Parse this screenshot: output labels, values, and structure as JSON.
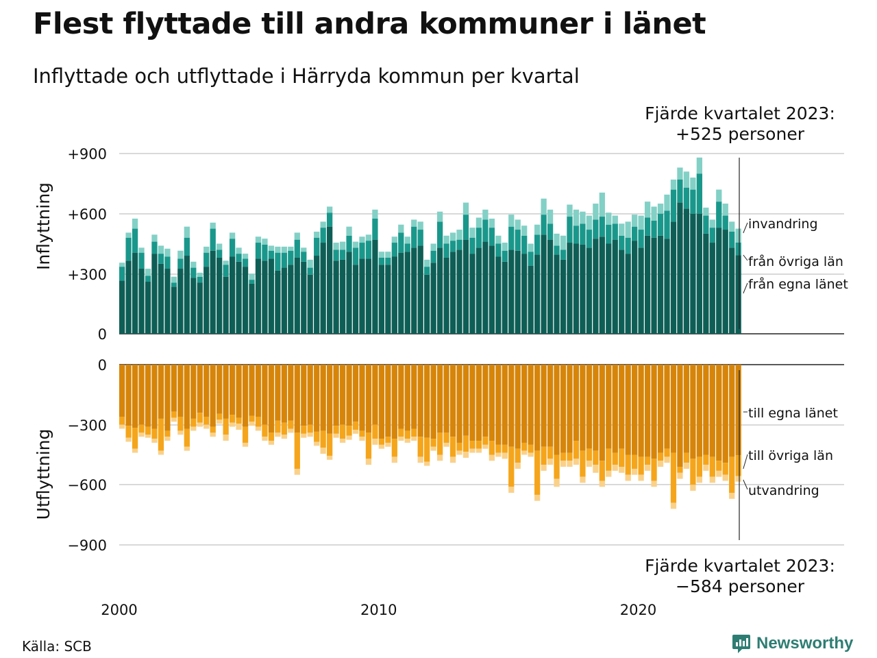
{
  "header": {
    "title": "Flest flyttade till andra kommuner i länet",
    "subtitle": "Inflyttade och utflyttade i Härryda kommun per kvartal"
  },
  "footer": {
    "source": "Källa: SCB",
    "brand": "Newsworthy"
  },
  "chart_data": {
    "type": "bar",
    "stacked": true,
    "x_axis": {
      "ticks": [
        "2000",
        "2010",
        "2020"
      ],
      "start": "2000 Q1",
      "end": "2023 Q4"
    },
    "panels": [
      {
        "name": "inflyttning",
        "ylabel": "Inflyttning",
        "ylim": [
          0,
          900
        ],
        "yticks": [
          "+900",
          "+600",
          "+300",
          "0"
        ],
        "annotation": [
          "Fjärde kvartalet 2023:",
          "+525 personer"
        ],
        "series_colors": [
          "#0e5e56",
          "#1a978b",
          "#83d0c6"
        ],
        "series": [
          {
            "name": "från egna länet",
            "values": [
              265,
              365,
              405,
              325,
              260,
              400,
              350,
              325,
              235,
              325,
              390,
              280,
              255,
              335,
              415,
              380,
              285,
              385,
              360,
              335,
              250,
              375,
              365,
              375,
              315,
              330,
              345,
              380,
              360,
              295,
              390,
              455,
              535,
              365,
              370,
              410,
              345,
              375,
              375,
              470,
              345,
              345,
              385,
              405,
              410,
              430,
              440,
              295,
              355,
              430,
              380,
              410,
              420,
              470,
              400,
              430,
              460,
              440,
              385,
              360,
              420,
              415,
              400,
              340,
              395,
              495,
              470,
              395,
              370,
              455,
              450,
              445,
              430,
              475,
              485,
              450,
              470,
              420,
              400,
              465,
              430,
              490,
              480,
              490,
              475,
              560,
              655,
              625,
              600,
              600,
              500,
              455,
              530,
              520,
              430,
              392
            ]
          },
          {
            "name": "från övriga län",
            "values": [
              70,
              115,
              120,
              80,
              30,
              60,
              50,
              60,
              20,
              50,
              90,
              50,
              30,
              70,
              110,
              40,
              60,
              90,
              40,
              40,
              20,
              80,
              80,
              40,
              90,
              75,
              70,
              90,
              50,
              35,
              90,
              75,
              70,
              55,
              50,
              80,
              85,
              80,
              90,
              105,
              35,
              35,
              70,
              100,
              40,
              105,
              80,
              40,
              60,
              130,
              70,
              55,
              50,
              125,
              80,
              100,
              110,
              90,
              65,
              55,
              115,
              105,
              90,
              70,
              100,
              100,
              80,
              45,
              50,
              130,
              90,
              105,
              90,
              95,
              100,
              95,
              80,
              70,
              80,
              70,
              90,
              90,
              85,
              110,
              140,
              160,
              115,
              105,
              120,
              200,
              90,
              75,
              130,
              70,
              80,
              64
            ]
          },
          {
            "name": "invandring",
            "values": [
              20,
              25,
              50,
              25,
              35,
              35,
              40,
              40,
              30,
              40,
              55,
              30,
              20,
              30,
              30,
              30,
              20,
              30,
              30,
              25,
              30,
              30,
              30,
              25,
              30,
              30,
              20,
              35,
              20,
              40,
              30,
              30,
              30,
              35,
              40,
              45,
              30,
              30,
              30,
              45,
              30,
              30,
              30,
              40,
              35,
              35,
              40,
              35,
              35,
              50,
              40,
              40,
              50,
              60,
              50,
              50,
              50,
              45,
              40,
              40,
              60,
              50,
              50,
              40,
              50,
              80,
              70,
              60,
              70,
              60,
              80,
              60,
              70,
              80,
              120,
              60,
              40,
              60,
              80,
              60,
              70,
              80,
              70,
              50,
              80,
              50,
              60,
              80,
              60,
              80,
              40,
              40,
              60,
              60,
              50,
              69
            ]
          }
        ]
      },
      {
        "name": "utflyttning",
        "ylabel": "Utflyttning",
        "ylim": [
          -900,
          0
        ],
        "yticks": [
          "0",
          "−300",
          "−600",
          "−900"
        ],
        "annotation": [
          "Fjärde kvartalet 2023:",
          "−584 personer"
        ],
        "series_colors": [
          "#d6850a",
          "#f5a51b",
          "#fad18a"
        ],
        "series": [
          {
            "name": "till egna länet",
            "values": [
              -260,
              -305,
              -315,
              -300,
              -310,
              -320,
              -270,
              -330,
              -235,
              -260,
              -320,
              -270,
              -240,
              -260,
              -310,
              -245,
              -270,
              -250,
              -265,
              -310,
              -255,
              -260,
              -300,
              -340,
              -280,
              -290,
              -280,
              -340,
              -305,
              -300,
              -335,
              -330,
              -345,
              -305,
              -300,
              -305,
              -285,
              -330,
              -340,
              -300,
              -370,
              -360,
              -370,
              -320,
              -330,
              -320,
              -360,
              -365,
              -370,
              -340,
              -340,
              -360,
              -390,
              -355,
              -380,
              -380,
              -360,
              -380,
              -400,
              -400,
              -410,
              -420,
              -390,
              -400,
              -430,
              -410,
              -410,
              -450,
              -440,
              -440,
              -380,
              -430,
              -420,
              -430,
              -480,
              -420,
              -440,
              -420,
              -450,
              -450,
              -460,
              -460,
              -470,
              -440,
              -420,
              -440,
              -510,
              -440,
              -470,
              -460,
              -450,
              -460,
              -480,
              -490,
              -460,
              -452
            ]
          },
          {
            "name": "till övriga län",
            "values": [
              -40,
              -60,
              -105,
              -40,
              -40,
              -50,
              -160,
              -30,
              -30,
              -70,
              -90,
              -40,
              -50,
              -40,
              -30,
              -30,
              -80,
              -40,
              -30,
              -80,
              -30,
              -50,
              -60,
              -40,
              -60,
              -60,
              -40,
              -180,
              -40,
              -40,
              -50,
              -85,
              -110,
              -40,
              -70,
              -50,
              -40,
              -30,
              -130,
              -70,
              -30,
              -30,
              -90,
              -40,
              -40,
              -40,
              -100,
              -120,
              -40,
              -110,
              -50,
              -100,
              -40,
              -80,
              -40,
              -40,
              -40,
              -70,
              -40,
              -40,
              -200,
              -70,
              -40,
              -40,
              -220,
              -90,
              -60,
              -120,
              -40,
              -40,
              -90,
              -130,
              -60,
              -70,
              -100,
              -110,
              -60,
              -90,
              -100,
              -70,
              -90,
              -40,
              -110,
              -40,
              -40,
              -250,
              -30,
              -50,
              -130,
              -100,
              -50,
              -100,
              -50,
              -60,
              -180,
              -104
            ]
          },
          {
            "name": "utvandring",
            "values": [
              -20,
              -20,
              -20,
              -20,
              -15,
              -20,
              -20,
              -20,
              -20,
              -20,
              -20,
              -20,
              -20,
              -20,
              -20,
              -20,
              -30,
              -20,
              -30,
              -20,
              -20,
              -20,
              -20,
              -20,
              -20,
              -20,
              -20,
              -30,
              -20,
              -20,
              -20,
              -30,
              -20,
              -20,
              -20,
              -20,
              -20,
              -20,
              -30,
              -30,
              -20,
              -20,
              -30,
              -20,
              -20,
              -20,
              -30,
              -20,
              -20,
              -30,
              -20,
              -30,
              -20,
              -30,
              -20,
              -20,
              -20,
              -30,
              -20,
              -30,
              -30,
              -30,
              -20,
              -20,
              -30,
              -30,
              -30,
              -40,
              -30,
              -30,
              -30,
              -30,
              -30,
              -40,
              -30,
              -30,
              -30,
              -30,
              -30,
              -30,
              -30,
              -30,
              -30,
              -30,
              -30,
              -30,
              -30,
              -30,
              -30,
              -30,
              -30,
              -30,
              -30,
              -30,
              -30,
              -28
            ]
          }
        ]
      }
    ]
  }
}
